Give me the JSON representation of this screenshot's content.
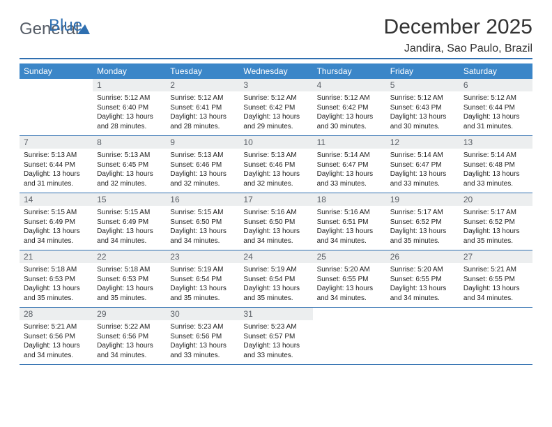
{
  "brand": {
    "general": "General",
    "blue": "Blue"
  },
  "title": "December 2025",
  "location": "Jandira, Sao Paulo, Brazil",
  "colors": {
    "accent": "#3b86c8",
    "rule": "#2f6fb0",
    "daynum_bg": "#eceeef",
    "daynum_fg": "#5a5f66",
    "text": "#222222",
    "bg": "#ffffff"
  },
  "fonts": {
    "title_size": 30,
    "location_size": 16,
    "header_size": 12,
    "cell_size": 10
  },
  "weekdays": [
    "Sunday",
    "Monday",
    "Tuesday",
    "Wednesday",
    "Thursday",
    "Friday",
    "Saturday"
  ],
  "weeks": [
    [
      null,
      {
        "n": "1",
        "sr": "Sunrise: 5:12 AM",
        "ss": "Sunset: 6:40 PM",
        "dl": "Daylight: 13 hours and 28 minutes."
      },
      {
        "n": "2",
        "sr": "Sunrise: 5:12 AM",
        "ss": "Sunset: 6:41 PM",
        "dl": "Daylight: 13 hours and 28 minutes."
      },
      {
        "n": "3",
        "sr": "Sunrise: 5:12 AM",
        "ss": "Sunset: 6:42 PM",
        "dl": "Daylight: 13 hours and 29 minutes."
      },
      {
        "n": "4",
        "sr": "Sunrise: 5:12 AM",
        "ss": "Sunset: 6:42 PM",
        "dl": "Daylight: 13 hours and 30 minutes."
      },
      {
        "n": "5",
        "sr": "Sunrise: 5:12 AM",
        "ss": "Sunset: 6:43 PM",
        "dl": "Daylight: 13 hours and 30 minutes."
      },
      {
        "n": "6",
        "sr": "Sunrise: 5:12 AM",
        "ss": "Sunset: 6:44 PM",
        "dl": "Daylight: 13 hours and 31 minutes."
      }
    ],
    [
      {
        "n": "7",
        "sr": "Sunrise: 5:13 AM",
        "ss": "Sunset: 6:44 PM",
        "dl": "Daylight: 13 hours and 31 minutes."
      },
      {
        "n": "8",
        "sr": "Sunrise: 5:13 AM",
        "ss": "Sunset: 6:45 PM",
        "dl": "Daylight: 13 hours and 32 minutes."
      },
      {
        "n": "9",
        "sr": "Sunrise: 5:13 AM",
        "ss": "Sunset: 6:46 PM",
        "dl": "Daylight: 13 hours and 32 minutes."
      },
      {
        "n": "10",
        "sr": "Sunrise: 5:13 AM",
        "ss": "Sunset: 6:46 PM",
        "dl": "Daylight: 13 hours and 32 minutes."
      },
      {
        "n": "11",
        "sr": "Sunrise: 5:14 AM",
        "ss": "Sunset: 6:47 PM",
        "dl": "Daylight: 13 hours and 33 minutes."
      },
      {
        "n": "12",
        "sr": "Sunrise: 5:14 AM",
        "ss": "Sunset: 6:47 PM",
        "dl": "Daylight: 13 hours and 33 minutes."
      },
      {
        "n": "13",
        "sr": "Sunrise: 5:14 AM",
        "ss": "Sunset: 6:48 PM",
        "dl": "Daylight: 13 hours and 33 minutes."
      }
    ],
    [
      {
        "n": "14",
        "sr": "Sunrise: 5:15 AM",
        "ss": "Sunset: 6:49 PM",
        "dl": "Daylight: 13 hours and 34 minutes."
      },
      {
        "n": "15",
        "sr": "Sunrise: 5:15 AM",
        "ss": "Sunset: 6:49 PM",
        "dl": "Daylight: 13 hours and 34 minutes."
      },
      {
        "n": "16",
        "sr": "Sunrise: 5:15 AM",
        "ss": "Sunset: 6:50 PM",
        "dl": "Daylight: 13 hours and 34 minutes."
      },
      {
        "n": "17",
        "sr": "Sunrise: 5:16 AM",
        "ss": "Sunset: 6:50 PM",
        "dl": "Daylight: 13 hours and 34 minutes."
      },
      {
        "n": "18",
        "sr": "Sunrise: 5:16 AM",
        "ss": "Sunset: 6:51 PM",
        "dl": "Daylight: 13 hours and 34 minutes."
      },
      {
        "n": "19",
        "sr": "Sunrise: 5:17 AM",
        "ss": "Sunset: 6:52 PM",
        "dl": "Daylight: 13 hours and 35 minutes."
      },
      {
        "n": "20",
        "sr": "Sunrise: 5:17 AM",
        "ss": "Sunset: 6:52 PM",
        "dl": "Daylight: 13 hours and 35 minutes."
      }
    ],
    [
      {
        "n": "21",
        "sr": "Sunrise: 5:18 AM",
        "ss": "Sunset: 6:53 PM",
        "dl": "Daylight: 13 hours and 35 minutes."
      },
      {
        "n": "22",
        "sr": "Sunrise: 5:18 AM",
        "ss": "Sunset: 6:53 PM",
        "dl": "Daylight: 13 hours and 35 minutes."
      },
      {
        "n": "23",
        "sr": "Sunrise: 5:19 AM",
        "ss": "Sunset: 6:54 PM",
        "dl": "Daylight: 13 hours and 35 minutes."
      },
      {
        "n": "24",
        "sr": "Sunrise: 5:19 AM",
        "ss": "Sunset: 6:54 PM",
        "dl": "Daylight: 13 hours and 35 minutes."
      },
      {
        "n": "25",
        "sr": "Sunrise: 5:20 AM",
        "ss": "Sunset: 6:55 PM",
        "dl": "Daylight: 13 hours and 34 minutes."
      },
      {
        "n": "26",
        "sr": "Sunrise: 5:20 AM",
        "ss": "Sunset: 6:55 PM",
        "dl": "Daylight: 13 hours and 34 minutes."
      },
      {
        "n": "27",
        "sr": "Sunrise: 5:21 AM",
        "ss": "Sunset: 6:55 PM",
        "dl": "Daylight: 13 hours and 34 minutes."
      }
    ],
    [
      {
        "n": "28",
        "sr": "Sunrise: 5:21 AM",
        "ss": "Sunset: 6:56 PM",
        "dl": "Daylight: 13 hours and 34 minutes."
      },
      {
        "n": "29",
        "sr": "Sunrise: 5:22 AM",
        "ss": "Sunset: 6:56 PM",
        "dl": "Daylight: 13 hours and 34 minutes."
      },
      {
        "n": "30",
        "sr": "Sunrise: 5:23 AM",
        "ss": "Sunset: 6:56 PM",
        "dl": "Daylight: 13 hours and 33 minutes."
      },
      {
        "n": "31",
        "sr": "Sunrise: 5:23 AM",
        "ss": "Sunset: 6:57 PM",
        "dl": "Daylight: 13 hours and 33 minutes."
      },
      null,
      null,
      null
    ]
  ]
}
